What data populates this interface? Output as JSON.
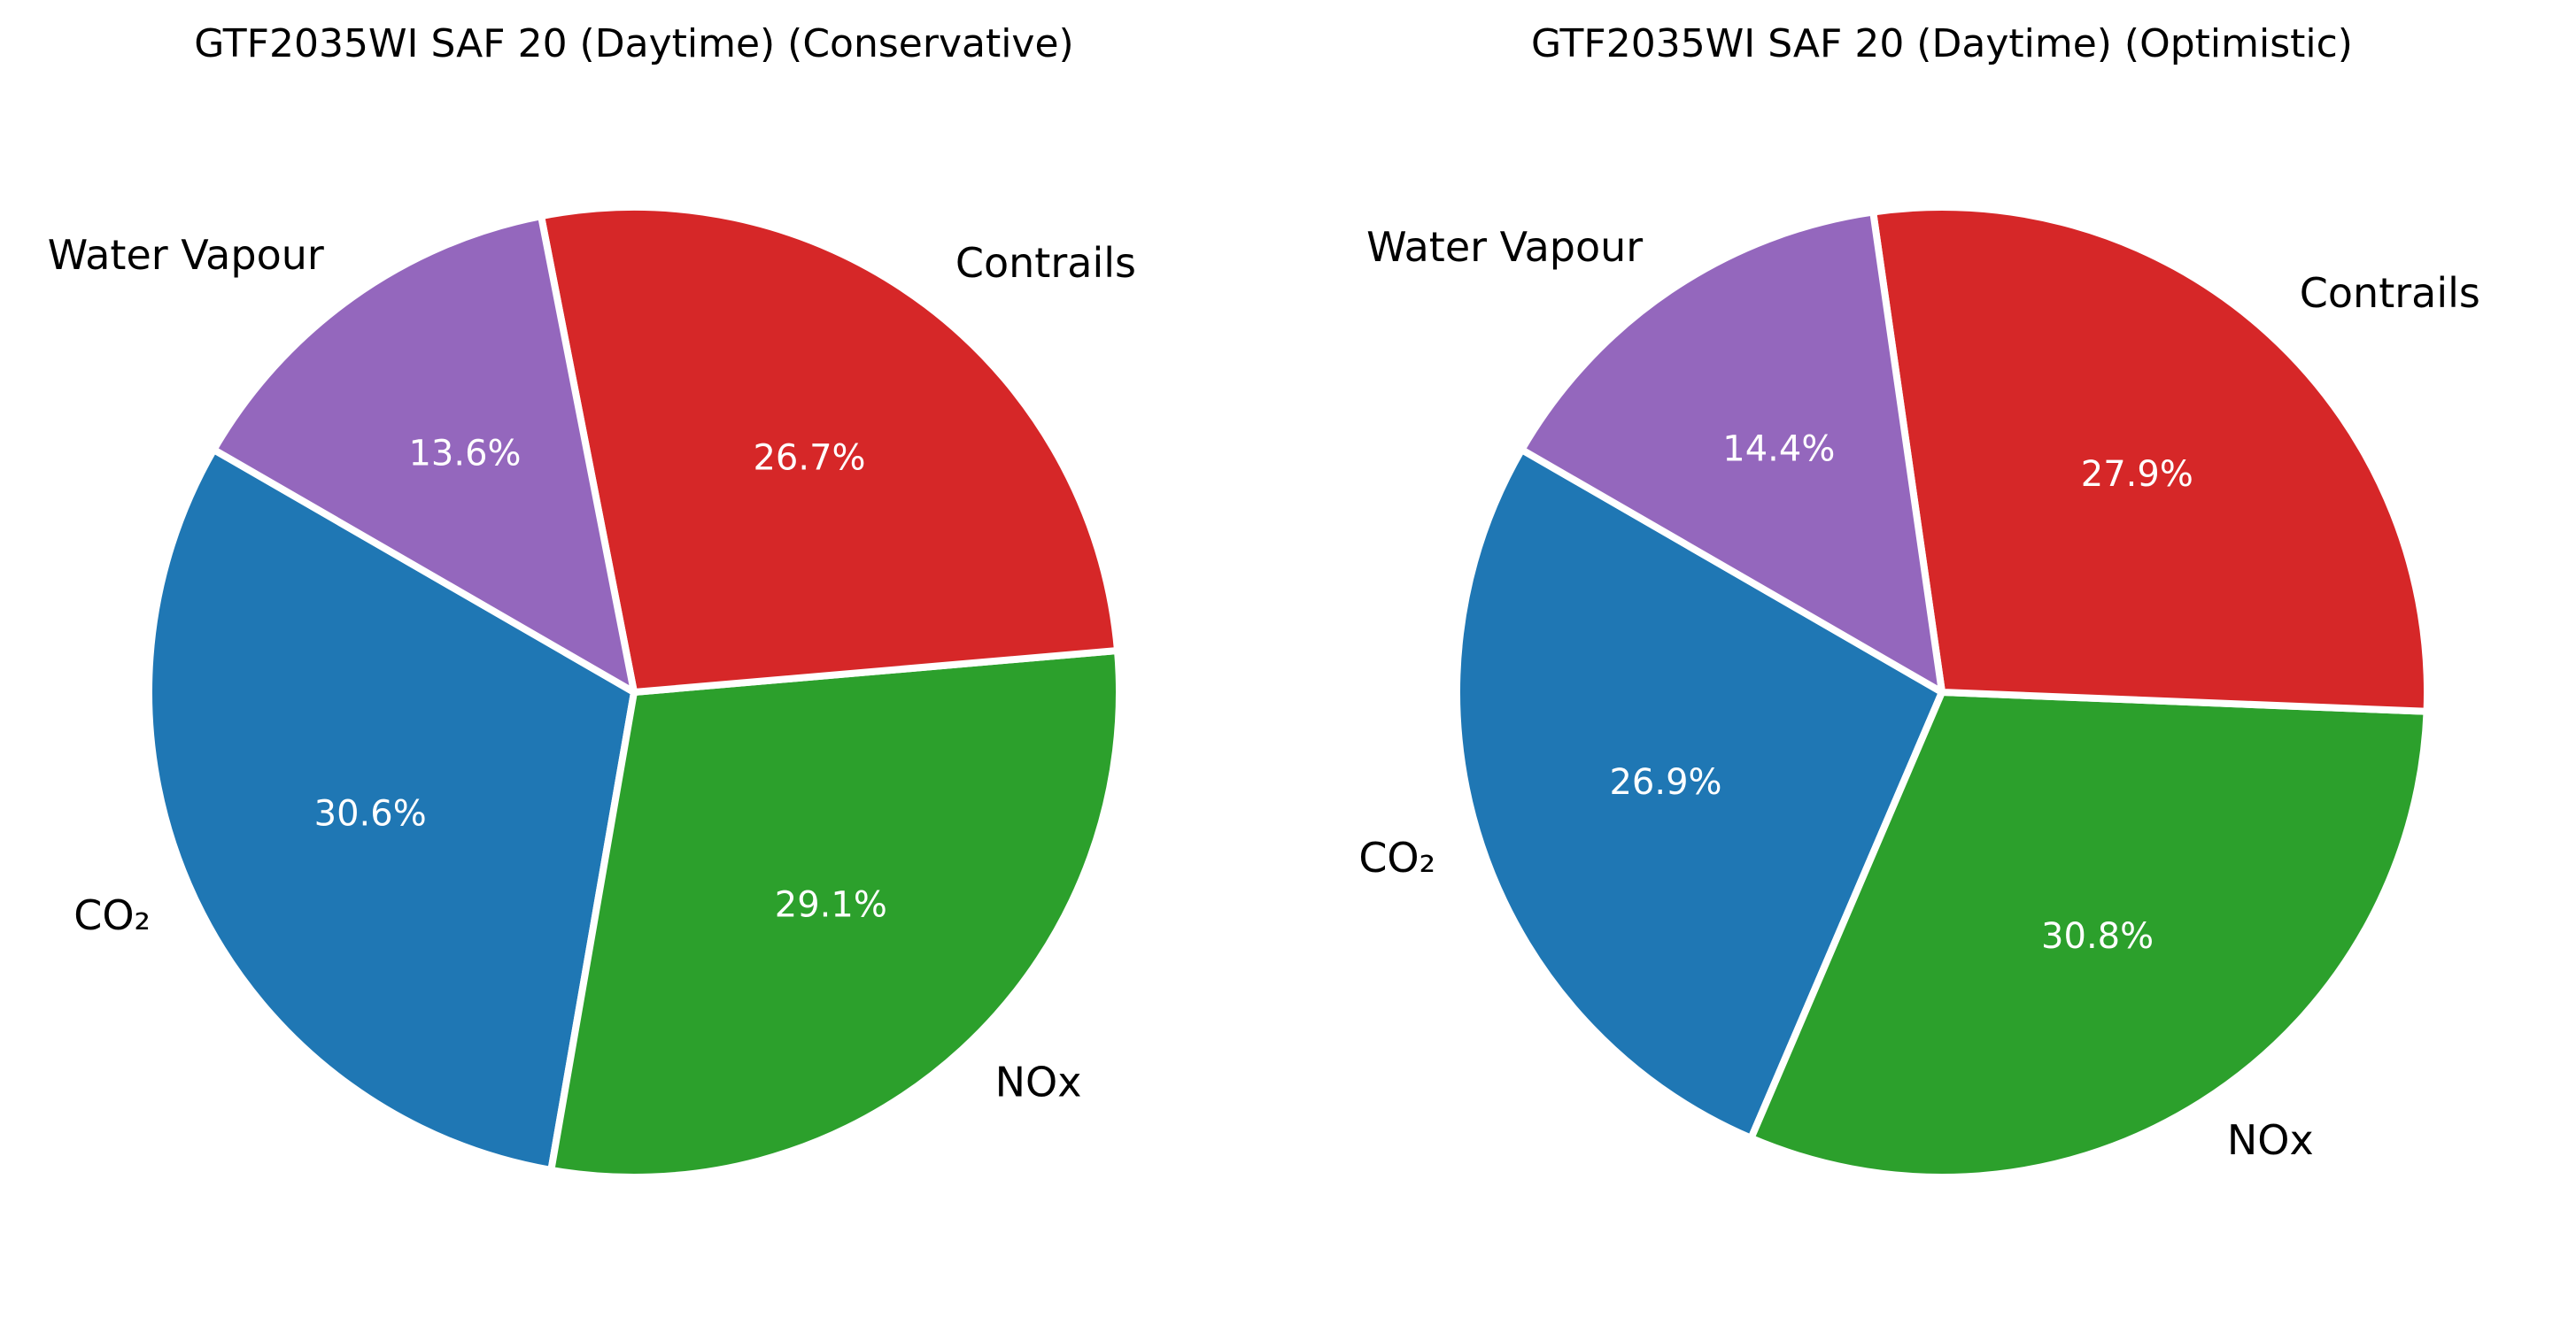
{
  "chart_data": [
    {
      "type": "pie",
      "title": "GTF2035WI SAF 20 (Daytime) (Conservative)",
      "slices": [
        {
          "label": "CO₂",
          "value": 30.6,
          "pct_label": "30.6%",
          "color": "#1f77b4"
        },
        {
          "label": "NOx",
          "value": 29.1,
          "pct_label": "29.1%",
          "color": "#2ca02c"
        },
        {
          "label": "Contrails",
          "value": 26.7,
          "pct_label": "26.7%",
          "color": "#d62728"
        },
        {
          "label": "Water Vapour",
          "value": 13.6,
          "pct_label": "13.6%",
          "color": "#9467bd"
        }
      ]
    },
    {
      "type": "pie",
      "title": "GTF2035WI SAF 20 (Daytime) (Optimistic)",
      "slices": [
        {
          "label": "CO₂",
          "value": 26.9,
          "pct_label": "26.9%",
          "color": "#1f77b4"
        },
        {
          "label": "NOx",
          "value": 30.8,
          "pct_label": "30.8%",
          "color": "#2ca02c"
        },
        {
          "label": "Contrails",
          "value": 27.9,
          "pct_label": "27.9%",
          "color": "#d62728"
        },
        {
          "label": "Water Vapour",
          "value": 14.4,
          "pct_label": "14.4%",
          "color": "#9467bd"
        }
      ]
    }
  ]
}
